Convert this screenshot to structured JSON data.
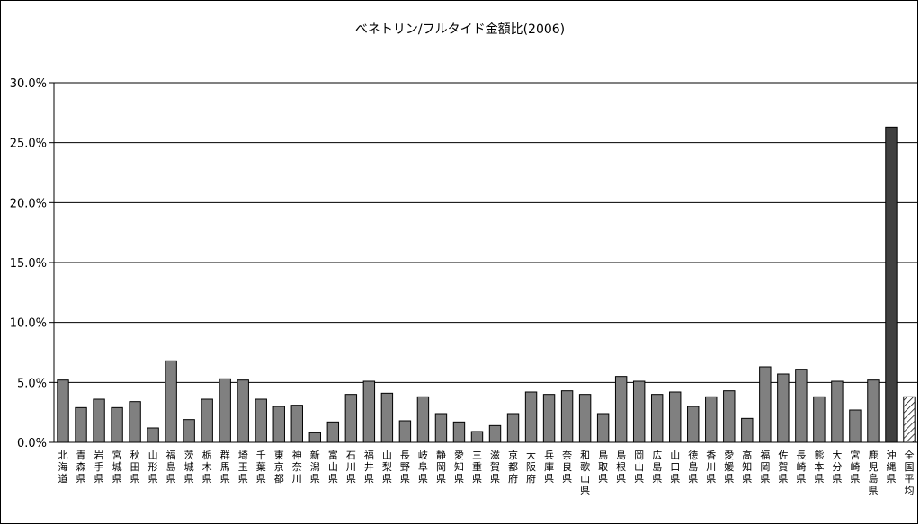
{
  "chart_data": {
    "type": "bar",
    "title": "ベネトリン/フルタイド金額比(2006)",
    "xlabel": "",
    "ylabel": "",
    "ylim": [
      0,
      30
    ],
    "yticks": [
      "0.0%",
      "5.0%",
      "10.0%",
      "15.0%",
      "20.0%",
      "25.0%",
      "30.0%"
    ],
    "grid": true,
    "categories": [
      "北海道",
      "青森県",
      "岩手県",
      "宮城県",
      "秋田県",
      "山形県",
      "福島県",
      "茨城県",
      "栃木県",
      "群馬県",
      "埼玉県",
      "千葉県",
      "東京都",
      "神奈川",
      "新潟県",
      "富山県",
      "石川県",
      "福井県",
      "山梨県",
      "長野県",
      "岐阜県",
      "静岡県",
      "愛知県",
      "三重県",
      "滋賀県",
      "京都府",
      "大阪府",
      "兵庫県",
      "奈良県",
      "和歌山県",
      "鳥取県",
      "島根県",
      "岡山県",
      "広島県",
      "山口県",
      "徳島県",
      "香川県",
      "愛媛県",
      "高知県",
      "福岡県",
      "佐賀県",
      "長崎県",
      "熊本県",
      "大分県",
      "宮崎県",
      "鹿児島県",
      "沖縄県",
      "全国平均"
    ],
    "values": [
      5.2,
      2.9,
      3.6,
      2.9,
      3.4,
      1.2,
      6.8,
      1.9,
      3.6,
      5.3,
      5.2,
      3.6,
      3.0,
      3.1,
      0.8,
      1.7,
      4.0,
      5.1,
      4.1,
      1.8,
      3.8,
      2.4,
      1.7,
      0.9,
      1.4,
      2.4,
      4.2,
      4.0,
      4.3,
      4.0,
      2.4,
      5.5,
      5.1,
      4.0,
      4.2,
      3.0,
      3.8,
      4.3,
      2.0,
      6.3,
      5.7,
      6.1,
      3.8,
      5.1,
      2.7,
      5.2,
      26.3,
      3.8
    ],
    "bar_color": "#808080",
    "highlight_color": "#404040",
    "average_fill": "hatched"
  }
}
